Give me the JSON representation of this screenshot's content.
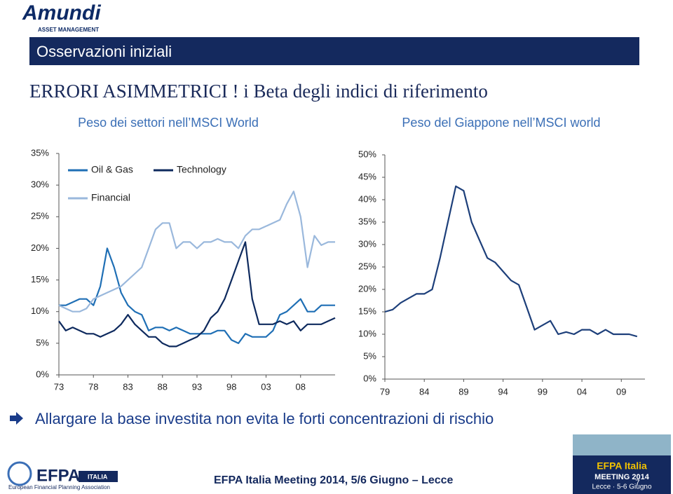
{
  "logo": {
    "name": "Amundi",
    "tagline": "ASSET MANAGEMENT"
  },
  "banner": "Osservazioni iniziali",
  "heading": "ERRORI ASIMMETRICI ! i Beta degli indici di riferimento",
  "bullet": "Allargare la base investita non evita le forti concentrazioni di rischio",
  "footer": {
    "text": "EFPA Italia Meeting 2014, 5/6 Giugno – Lecce",
    "logo": "EFPA",
    "logo_country": "ITALIA",
    "logo_org": "European Financial Planning Association",
    "badge_title": "EFPA Italia",
    "badge_event": "MEETING 2014",
    "badge_place": "Lecce · 5-6 Giugno",
    "page": "7"
  },
  "chart_data": [
    {
      "type": "line",
      "title": "Peso dei settori nell’MSCI World",
      "x": [
        1973,
        1974,
        1975,
        1976,
        1977,
        1978,
        1979,
        1980,
        1981,
        1982,
        1983,
        1984,
        1985,
        1986,
        1987,
        1988,
        1989,
        1990,
        1991,
        1992,
        1993,
        1994,
        1995,
        1996,
        1997,
        1998,
        1999,
        2000,
        2001,
        2002,
        2003,
        2004,
        2005,
        2006,
        2007,
        2008,
        2009,
        2010,
        2011,
        2012,
        2013
      ],
      "xlim": [
        1973,
        2013
      ],
      "xticks": [
        {
          "value": 1973,
          "label": "73"
        },
        {
          "value": 1978,
          "label": "78"
        },
        {
          "value": 1983,
          "label": "83"
        },
        {
          "value": 1988,
          "label": "88"
        },
        {
          "value": 1993,
          "label": "93"
        },
        {
          "value": 1998,
          "label": "98"
        },
        {
          "value": 2003,
          "label": "03"
        },
        {
          "value": 2008,
          "label": "08"
        }
      ],
      "ylim": [
        0,
        35
      ],
      "yticks": [
        {
          "value": 0,
          "label": "0%"
        },
        {
          "value": 5,
          "label": "5%"
        },
        {
          "value": 10,
          "label": "10%"
        },
        {
          "value": 15,
          "label": "15%"
        },
        {
          "value": 20,
          "label": "20%"
        },
        {
          "value": 25,
          "label": "25%"
        },
        {
          "value": 30,
          "label": "30%"
        },
        {
          "value": 35,
          "label": "35%"
        }
      ],
      "series": [
        {
          "name": "Oil & Gas",
          "color": "#1f6fb5",
          "values": [
            11,
            11,
            11.5,
            12,
            12,
            11,
            14,
            20,
            17,
            13,
            11,
            10,
            9.5,
            7,
            7.5,
            7.5,
            7,
            7.5,
            7,
            6.5,
            6.5,
            6.5,
            6.5,
            7,
            7,
            5.5,
            5,
            6.5,
            6,
            6,
            6,
            7,
            9.5,
            10,
            11,
            12,
            10,
            10,
            11,
            11,
            11
          ]
        },
        {
          "name": "Technology",
          "color": "#0e2a5e",
          "values": [
            8.5,
            7,
            7.5,
            7,
            6.5,
            6.5,
            6,
            6.5,
            7,
            8,
            9.5,
            8,
            7,
            6,
            6,
            5,
            4.5,
            4.5,
            5,
            5.5,
            6,
            7,
            9,
            10,
            12,
            15,
            18,
            21,
            12,
            8,
            8,
            8,
            8.5,
            8,
            8.5,
            7,
            8,
            8,
            8,
            8.5,
            9
          ]
        },
        {
          "name": "Financial",
          "color": "#9ab8dc",
          "values": [
            11,
            10.5,
            10,
            10,
            10.5,
            12,
            12.5,
            13,
            13.5,
            14,
            15,
            16,
            17,
            20,
            23,
            24,
            24,
            20,
            21,
            21,
            20,
            21,
            21,
            21.5,
            21,
            21,
            20,
            22,
            23,
            23,
            23.5,
            24,
            24.5,
            27,
            29,
            25,
            17,
            22,
            20.5,
            21,
            21
          ]
        }
      ]
    },
    {
      "type": "line",
      "title": "Peso del Giappone nell’MSCI world",
      "x": [
        1979,
        1980,
        1981,
        1982,
        1983,
        1984,
        1985,
        1986,
        1987,
        1988,
        1989,
        1990,
        1991,
        1992,
        1993,
        1994,
        1995,
        1996,
        1997,
        1998,
        1999,
        2000,
        2001,
        2002,
        2003,
        2004,
        2005,
        2006,
        2007,
        2008,
        2009,
        2010,
        2011
      ],
      "xlim": [
        1979,
        2012
      ],
      "xticks": [
        {
          "value": 1979,
          "label": "79"
        },
        {
          "value": 1984,
          "label": "84"
        },
        {
          "value": 1989,
          "label": "89"
        },
        {
          "value": 1994,
          "label": "94"
        },
        {
          "value": 1999,
          "label": "99"
        },
        {
          "value": 2004,
          "label": "04"
        },
        {
          "value": 2009,
          "label": "09"
        }
      ],
      "ylim": [
        0,
        50
      ],
      "yticks": [
        {
          "value": 0,
          "label": "0%"
        },
        {
          "value": 5,
          "label": "5%"
        },
        {
          "value": 10,
          "label": "10%"
        },
        {
          "value": 15,
          "label": "15%"
        },
        {
          "value": 20,
          "label": "20%"
        },
        {
          "value": 25,
          "label": "25%"
        },
        {
          "value": 30,
          "label": "30%"
        },
        {
          "value": 35,
          "label": "35%"
        },
        {
          "value": 40,
          "label": "40%"
        },
        {
          "value": 45,
          "label": "45%"
        },
        {
          "value": 50,
          "label": "50%"
        }
      ],
      "series": [
        {
          "color": "#1d3f7a",
          "values": [
            15,
            15.5,
            17,
            18,
            19,
            19,
            20,
            27,
            35,
            43,
            42,
            35,
            31,
            27,
            26,
            24,
            22,
            21,
            16,
            11,
            12,
            13,
            10,
            10.5,
            10,
            11,
            11,
            10,
            11,
            10,
            10,
            10,
            9.5
          ]
        }
      ]
    }
  ]
}
